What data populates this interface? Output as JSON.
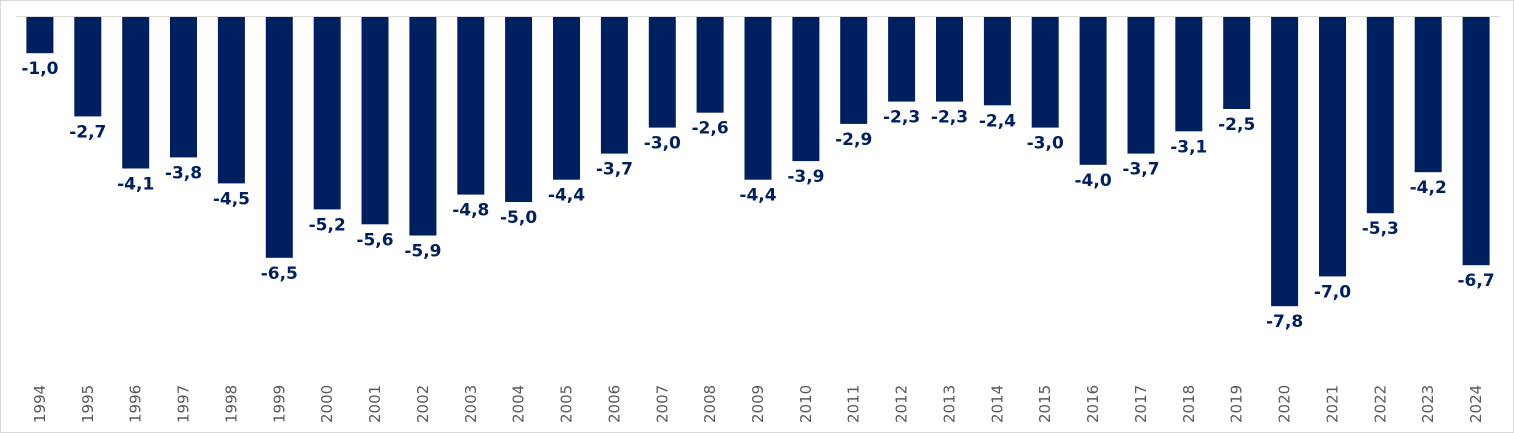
{
  "chart_data": {
    "type": "bar",
    "title": "",
    "xlabel": "",
    "ylabel": "",
    "categories": [
      "1994",
      "1995",
      "1996",
      "1997",
      "1998",
      "1999",
      "2000",
      "2001",
      "2002",
      "2003",
      "2004",
      "2005",
      "2006",
      "2007",
      "2008",
      "2009",
      "2010",
      "2011",
      "2012",
      "2013",
      "2014",
      "2015",
      "2016",
      "2017",
      "2018",
      "2019",
      "2020",
      "2021",
      "2022",
      "2023",
      "2024"
    ],
    "values": [
      -1.0,
      -2.7,
      -4.1,
      -3.8,
      -4.5,
      -6.5,
      -5.2,
      -5.6,
      -5.9,
      -4.8,
      -5.0,
      -4.4,
      -3.7,
      -3.0,
      -2.6,
      -4.4,
      -3.9,
      -2.9,
      -2.3,
      -2.3,
      -2.4,
      -3.0,
      -4.0,
      -3.7,
      -3.1,
      -2.5,
      -7.8,
      -7.0,
      -5.3,
      -4.2,
      -6.7
    ],
    "labels": [
      "-1,0",
      "-2,7",
      "-4,1",
      "-3,8",
      "-4,5",
      "-6,5",
      "-5,2",
      "-5,6",
      "-5,9",
      "-4,8",
      "-5,0",
      "-4,4",
      "-3,7",
      "-3,0",
      "-2,6",
      "-4,4",
      "-3,9",
      "-2,9",
      "-2,3",
      "-2,3",
      "-2,4",
      "-3,0",
      "-4,0",
      "-3,7",
      "-3,1",
      "-2,5",
      "-7,8",
      "-7,0",
      "-5,3",
      "-4,2",
      "-6,7"
    ],
    "ylim": [
      -9,
      0
    ],
    "grid": false,
    "legend": "none",
    "colors": {
      "bar": "#001f5f",
      "label": "#001f5f",
      "tick": "#595959",
      "axis": "#d9d9d9"
    }
  }
}
